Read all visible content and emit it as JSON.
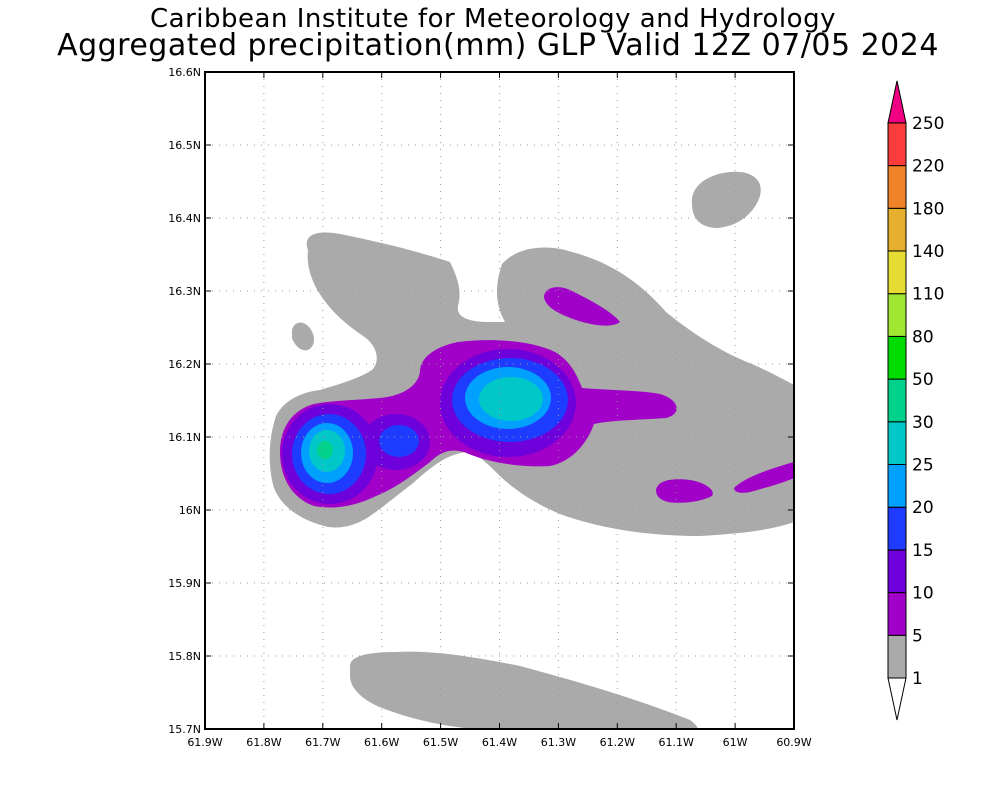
{
  "title_line1": "Caribbean Institute for Meteorology and Hydrology",
  "title_line2": "Aggregated precipitation(mm) GLP Valid 12Z 07/05 2024",
  "lat_ticks": [
    "16.6N",
    "16.5N",
    "16.4N",
    "16.3N",
    "16.2N",
    "16.1N",
    "16N",
    "15.9N",
    "15.8N",
    "15.7N"
  ],
  "lon_ticks": [
    "61.9W",
    "61.8W",
    "61.7W",
    "61.6W",
    "61.5W",
    "61.4W",
    "61.3W",
    "61.2W",
    "61.1W",
    "61W",
    "60.9W"
  ],
  "legend": {
    "levels": [
      "1",
      "5",
      "10",
      "15",
      "20",
      "25",
      "30",
      "50",
      "80",
      "110",
      "140",
      "180",
      "220",
      "250"
    ],
    "colors": [
      "#aaaaaa",
      "#a000c8",
      "#6e00dc",
      "#1e3cff",
      "#00a0ff",
      "#00c8c8",
      "#00d28c",
      "#00dc00",
      "#a0e632",
      "#e6dc32",
      "#e6af2d",
      "#f08228",
      "#fa3c3c",
      "#f00082"
    ]
  }
}
